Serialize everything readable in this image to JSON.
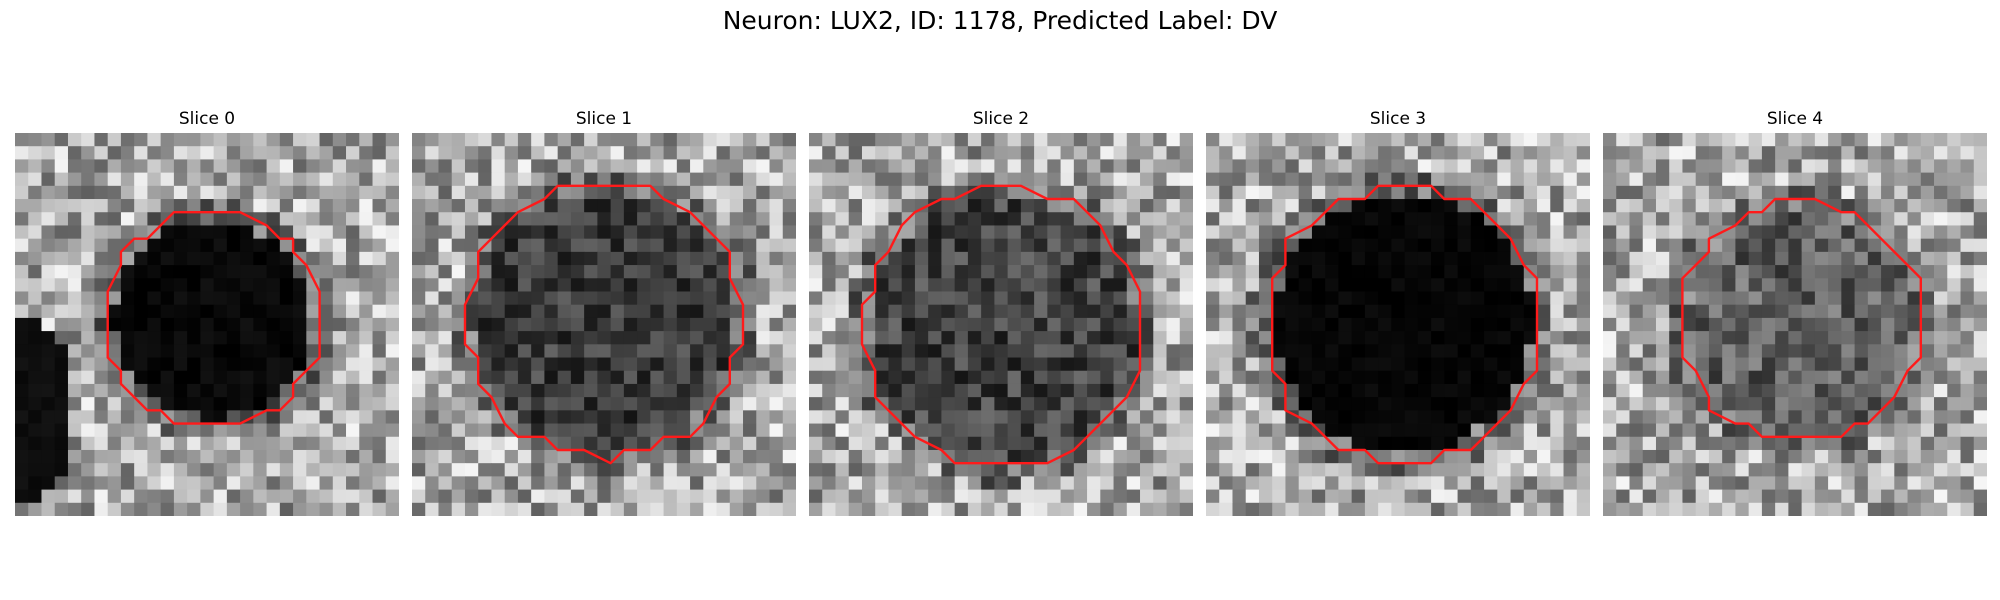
{
  "figure": {
    "title": "Neuron: LUX2, ID: 1178, Predicted Label: DV",
    "contour_color": "#ff1a1a"
  },
  "slices": [
    {
      "title": "Slice 0"
    },
    {
      "title": "Slice 1"
    },
    {
      "title": "Slice 2"
    },
    {
      "title": "Slice 3"
    },
    {
      "title": "Slice 4"
    }
  ]
}
